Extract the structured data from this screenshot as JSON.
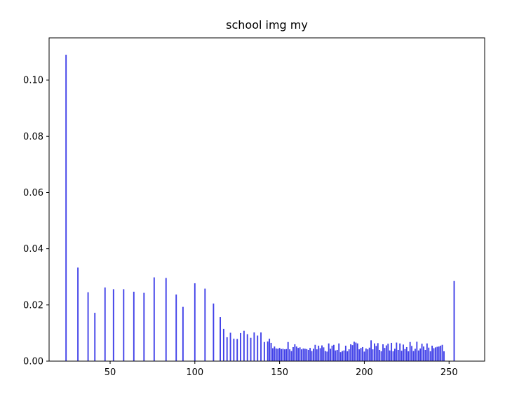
{
  "chart_data": {
    "type": "bar",
    "title": "school img my",
    "xlabel": "",
    "ylabel": "",
    "xlim": [
      14,
      271
    ],
    "ylim": [
      0,
      0.115
    ],
    "xticks": [
      50,
      100,
      150,
      200,
      250
    ],
    "xtick_labels": [
      "50",
      "100",
      "150",
      "200",
      "250"
    ],
    "yticks": [
      0.0,
      0.02,
      0.04,
      0.06,
      0.08,
      0.1
    ],
    "ytick_labels": [
      "0.00",
      "0.02",
      "0.04",
      "0.06",
      "0.08",
      "0.10"
    ],
    "grid": false,
    "bar_color": "#4040e8",
    "x": [
      24,
      31,
      37,
      41,
      47,
      52,
      58,
      64,
      70,
      76,
      83,
      89,
      93,
      100,
      106,
      111,
      115,
      117,
      119,
      121,
      123,
      125,
      127,
      129,
      131,
      133,
      135,
      137,
      139,
      141,
      143,
      144,
      145,
      146,
      147,
      148,
      149,
      150,
      151,
      152,
      153,
      154,
      155,
      156,
      157,
      158,
      159,
      160,
      161,
      162,
      163,
      164,
      165,
      166,
      167,
      168,
      169,
      170,
      171,
      172,
      173,
      174,
      175,
      176,
      177,
      178,
      179,
      180,
      181,
      182,
      183,
      184,
      185,
      186,
      187,
      188,
      189,
      190,
      191,
      192,
      193,
      194,
      195,
      196,
      197,
      198,
      199,
      200,
      201,
      202,
      203,
      204,
      205,
      206,
      207,
      208,
      209,
      210,
      211,
      212,
      213,
      214,
      215,
      216,
      217,
      218,
      219,
      220,
      221,
      222,
      223,
      224,
      225,
      226,
      227,
      228,
      229,
      230,
      231,
      232,
      233,
      234,
      235,
      236,
      237,
      238,
      239,
      240,
      241,
      242,
      243,
      244,
      245,
      246,
      247,
      253
    ],
    "values": [
      0.109,
      0.0333,
      0.0245,
      0.0172,
      0.0262,
      0.0256,
      0.0256,
      0.0247,
      0.0243,
      0.0298,
      0.0296,
      0.0237,
      0.0193,
      0.0277,
      0.0258,
      0.0205,
      0.0157,
      0.0115,
      0.0085,
      0.0101,
      0.008,
      0.0079,
      0.01,
      0.0108,
      0.0096,
      0.0083,
      0.0102,
      0.0091,
      0.0102,
      0.0068,
      0.007,
      0.008,
      0.0065,
      0.0046,
      0.0052,
      0.0045,
      0.0044,
      0.0047,
      0.0043,
      0.0044,
      0.0042,
      0.0043,
      0.0068,
      0.0042,
      0.0036,
      0.005,
      0.006,
      0.0052,
      0.0047,
      0.0049,
      0.0042,
      0.0045,
      0.0044,
      0.0043,
      0.004,
      0.0047,
      0.0036,
      0.0044,
      0.0058,
      0.0042,
      0.0055,
      0.0046,
      0.0056,
      0.0049,
      0.0036,
      0.0034,
      0.0063,
      0.0044,
      0.0055,
      0.0058,
      0.0038,
      0.004,
      0.0063,
      0.0032,
      0.0036,
      0.0038,
      0.0055,
      0.0035,
      0.0042,
      0.006,
      0.0057,
      0.0069,
      0.0066,
      0.0063,
      0.0042,
      0.0047,
      0.005,
      0.0034,
      0.0045,
      0.0042,
      0.0048,
      0.0074,
      0.0042,
      0.0063,
      0.0054,
      0.0064,
      0.004,
      0.0035,
      0.006,
      0.0047,
      0.0056,
      0.0062,
      0.0038,
      0.0065,
      0.0035,
      0.0044,
      0.0066,
      0.004,
      0.0063,
      0.0037,
      0.0059,
      0.0043,
      0.005,
      0.0035,
      0.0068,
      0.0054,
      0.0036,
      0.0044,
      0.0069,
      0.0038,
      0.0045,
      0.0062,
      0.0052,
      0.004,
      0.0063,
      0.0048,
      0.0035,
      0.0055,
      0.0046,
      0.0049,
      0.0051,
      0.0052,
      0.0055,
      0.0058,
      0.0035,
      0.0285
    ]
  }
}
